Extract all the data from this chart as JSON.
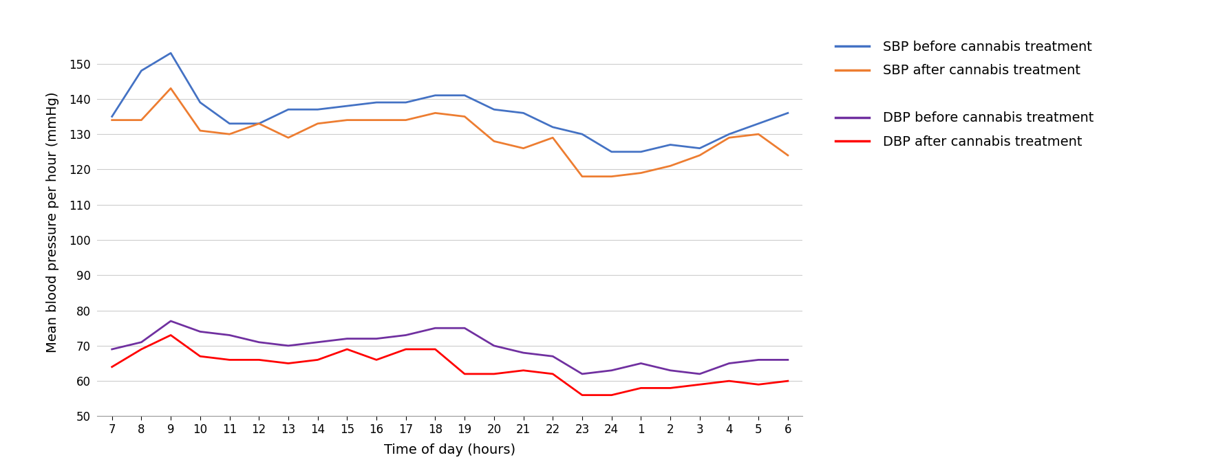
{
  "x_labels": [
    "7",
    "8",
    "9",
    "10",
    "11",
    "12",
    "13",
    "14",
    "15",
    "16",
    "17",
    "18",
    "19",
    "20",
    "21",
    "22",
    "23",
    "24",
    "1",
    "2",
    "3",
    "4",
    "5",
    "6"
  ],
  "x_positions": [
    0,
    1,
    2,
    3,
    4,
    5,
    6,
    7,
    8,
    9,
    10,
    11,
    12,
    13,
    14,
    15,
    16,
    17,
    18,
    19,
    20,
    21,
    22,
    23
  ],
  "sbp_before": [
    135,
    148,
    153,
    139,
    133,
    133,
    137,
    137,
    138,
    139,
    139,
    141,
    141,
    137,
    136,
    132,
    130,
    125,
    125,
    127,
    126,
    130,
    133,
    136
  ],
  "sbp_after": [
    134,
    134,
    143,
    131,
    130,
    133,
    129,
    133,
    134,
    134,
    134,
    136,
    135,
    128,
    126,
    129,
    118,
    118,
    119,
    121,
    124,
    129,
    130,
    124
  ],
  "dbp_before": [
    69,
    71,
    77,
    74,
    73,
    71,
    70,
    71,
    72,
    72,
    73,
    75,
    75,
    70,
    68,
    67,
    62,
    63,
    65,
    63,
    62,
    65,
    66,
    66
  ],
  "dbp_after": [
    64,
    69,
    73,
    67,
    66,
    66,
    65,
    66,
    69,
    66,
    69,
    69,
    62,
    62,
    63,
    62,
    56,
    56,
    58,
    58,
    59,
    60,
    59,
    60
  ],
  "sbp_before_color": "#4472C4",
  "sbp_after_color": "#ED7D31",
  "dbp_before_color": "#7030A0",
  "dbp_after_color": "#FF0000",
  "ylabel": "Mean blood pressure per hour (mmHg)",
  "xlabel": "Time of day (hours)",
  "ylim": [
    50,
    160
  ],
  "yticks": [
    50,
    60,
    70,
    80,
    90,
    100,
    110,
    120,
    130,
    140,
    150
  ],
  "legend_labels": [
    "SBP before cannabis treatment",
    "SBP after cannabis treatment",
    "DBP before cannabis treatment",
    "DBP after cannabis treatment"
  ],
  "legend_colors": [
    "#4472C4",
    "#ED7D31",
    "#7030A0",
    "#FF0000"
  ],
  "background_color": "#FFFFFF",
  "grid_color": "#CCCCCC",
  "line_width": 2.0,
  "font_size_labels": 14,
  "font_size_legend": 14,
  "font_size_ticks": 12
}
